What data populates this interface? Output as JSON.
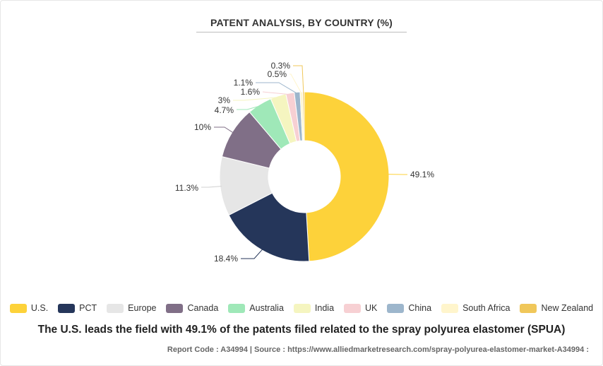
{
  "chart_data": {
    "type": "pie",
    "subtype": "donut",
    "title": "PATENT ANALYSIS, BY COUNTRY (%)",
    "categories": [
      "U.S.",
      "PCT",
      "Europe",
      "Canada",
      "Australia",
      "India",
      "UK",
      "China",
      "South Africa",
      "New Zealand"
    ],
    "values": [
      49.1,
      18.4,
      11.3,
      10,
      4.7,
      3,
      1.6,
      1.1,
      0.5,
      0.3
    ],
    "labels": [
      "49.1%",
      "18.4%",
      "11.3%",
      "10%",
      "4.7%",
      "3%",
      "1.6%",
      "1.1%",
      "0.5%",
      "0.3%"
    ],
    "colors": [
      "#fdd23a",
      "#25365a",
      "#e6e6e6",
      "#806f87",
      "#9fe8b8",
      "#f5f5c0",
      "#f7d0d3",
      "#9db6cc",
      "#fff5cc",
      "#f0c75a"
    ],
    "legend_position": "bottom"
  },
  "caption": "The U.S. leads the field with 49.1% of the patents filed related to the spray polyurea elastomer (SPUA)",
  "footer": "Report Code : A34994  |  Source : https://www.alliedmarketresearch.com/spray-polyurea-elastomer-market-A34994 :"
}
